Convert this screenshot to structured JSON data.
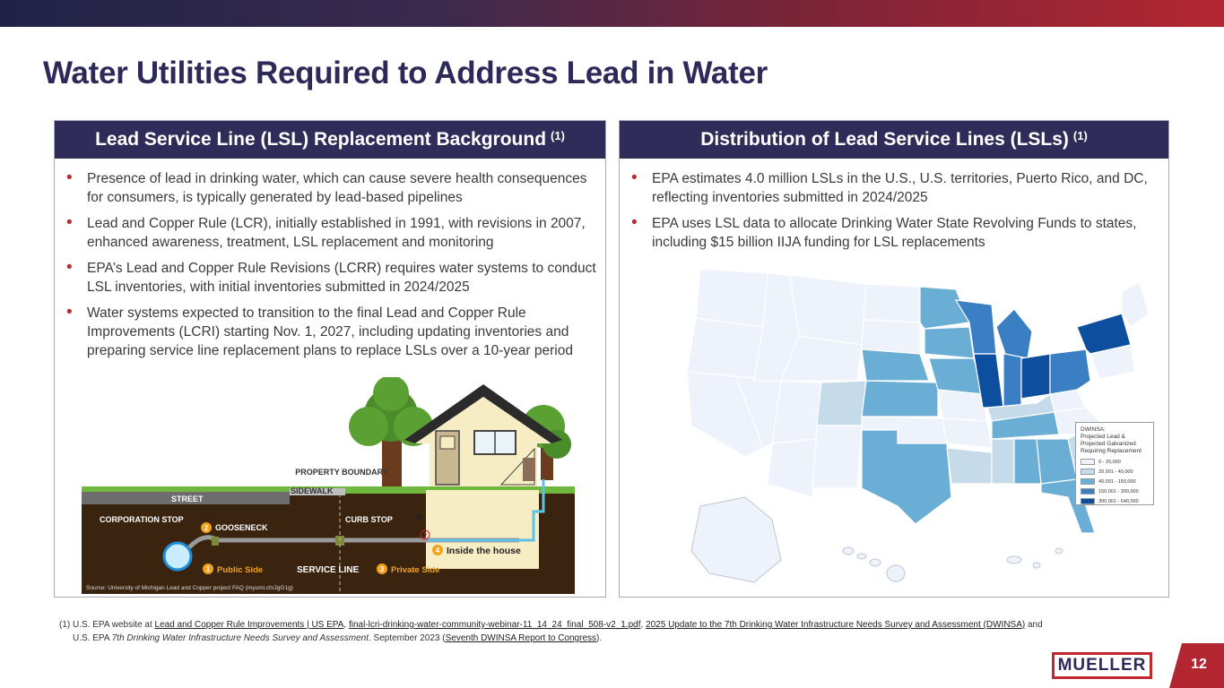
{
  "title": "Water Utilities Required to Address Lead in Water",
  "left_panel": {
    "header": "Lead Service Line (LSL) Replacement Background",
    "header_sup": "(1)",
    "bullets": [
      "Presence of lead in drinking water, which can cause severe health consequences for consumers, is typically generated by lead-based pipelines",
      "Lead and Copper Rule (LCR), initially established in 1991, with revisions in 2007, enhanced awareness, treatment, LSL replacement and monitoring",
      "EPA’s Lead and Copper Rule Revisions (LCRR) requires water systems to conduct LSL inventories, with initial inventories submitted in 2024/2025",
      "Water systems expected to transition to the final Lead and Copper Rule Improvements (LCRI) starting Nov. 1, 2027, including updating inventories and preparing service line replacement plans to replace LSLs over a 10-year period"
    ],
    "diagram": {
      "property_boundary": "PROPERTY BOUNDARY",
      "sidewalk": "SIDEWALK",
      "street": "STREET",
      "corporation_stop": "CORPORATION STOP",
      "gooseneck_num": "2",
      "gooseneck": "GOOSENECK",
      "curb_stop": "CURB STOP",
      "question_mark": "?",
      "inside_num": "4",
      "inside": "Inside the house",
      "public_num": "1",
      "public": "Public Side",
      "service_line": "SERVICE LINE",
      "private_num": "3",
      "private": "Private Side",
      "source": "Source: University of Michigan Lead and Copper project FAQ (myumi.ch/JgG1g)"
    }
  },
  "right_panel": {
    "header": "Distribution of Lead Service Lines (LSLs)",
    "header_sup": "(1)",
    "bullets": [
      "EPA estimates 4.0 million LSLs in the U.S., U.S. territories, Puerto Rico, and DC, reflecting inventories submitted in 2024/2025",
      "EPA uses LSL data to allocate Drinking Water State Revolving Funds to states, including $15 billion IIJA funding for LSL replacements"
    ],
    "legend": {
      "title_1": "DWINSA:",
      "title_2": "Projected Lead &",
      "title_3": "Projected Galvanized",
      "title_4": "Requiring Replacement",
      "items": [
        {
          "label": "0 - 20,000",
          "color": "#eef2fb"
        },
        {
          "label": "20,001 - 40,000",
          "color": "#c5dbea"
        },
        {
          "label": "40,001 - 150,000",
          "color": "#6aaed6"
        },
        {
          "label": "150,001 - 300,000",
          "color": "#3a7ec4"
        },
        {
          "label": "300,001 - 640,000",
          "color": "#0d4f9e"
        }
      ]
    }
  },
  "footnote": {
    "num": "(1)",
    "t1": "U.S. EPA website at ",
    "l1": "Lead and Copper Rule Improvements | US EPA",
    "t2": ", ",
    "l2": "final-lcri-drinking-water-community-webinar-11_14_24_final_508-v2_1.pdf",
    "t3": ", ",
    "l3": "2025 Update to the 7th Drinking Water Infrastructure Needs Survey and Assessment (DWINSA)",
    "t4": " and",
    "t5": "U.S. EPA ",
    "i1": "7th Drinking Water Infrastructure Needs Survey and Assessment",
    "t6": ". September 2023 (",
    "l4": "Seventh DWINSA Report to Congress",
    "t7": ")."
  },
  "logo": "MUELLER",
  "page_number": "12"
}
